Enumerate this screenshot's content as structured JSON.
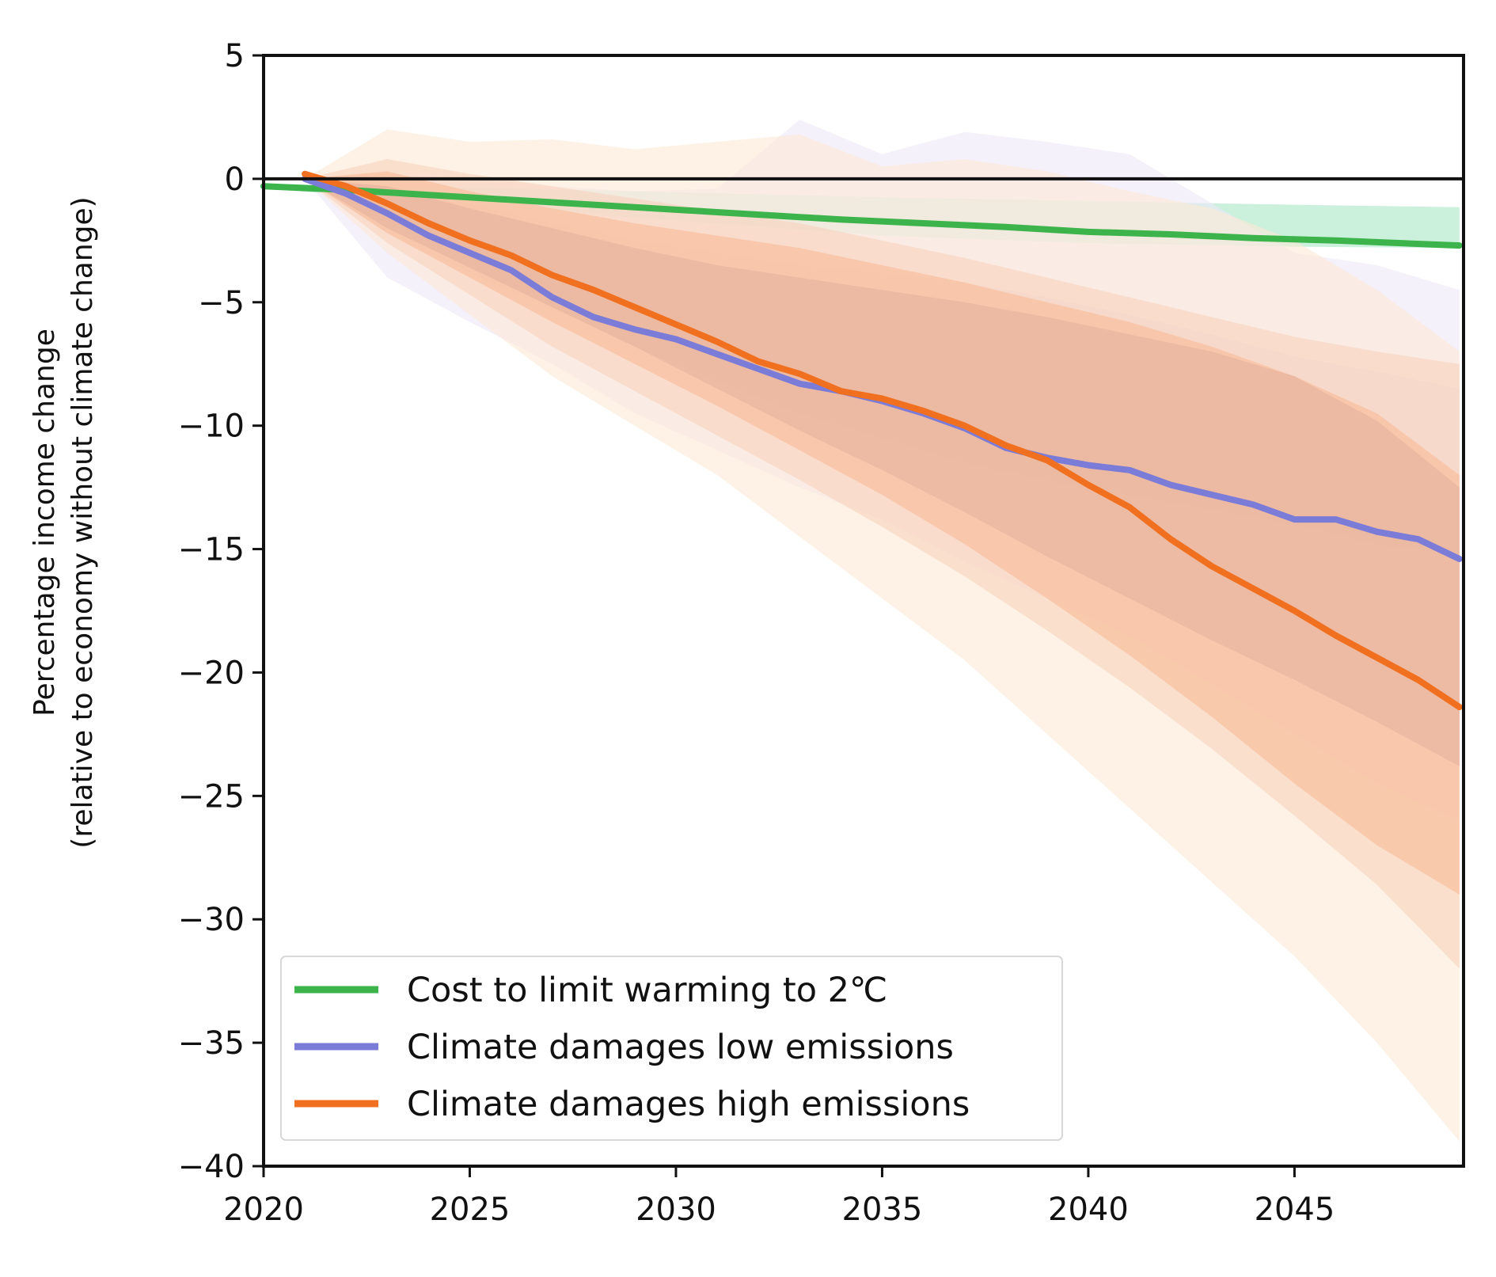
{
  "chart_data": {
    "type": "line",
    "title": "",
    "xlabel": "",
    "ylabel": [
      "Percentage income change",
      "(relative to economy without climate change)"
    ],
    "xlim": [
      2020,
      2049
    ],
    "ylim": [
      -40,
      5
    ],
    "xticks": [
      2020,
      2025,
      2030,
      2035,
      2040,
      2045
    ],
    "yticks": [
      5,
      0,
      -5,
      -10,
      -15,
      -20,
      -25,
      -30,
      -35,
      -40
    ],
    "grid": false,
    "reference_line": 0,
    "legend_position": "bottom-left",
    "series": [
      {
        "name": "Cost to limit warming to 2℃",
        "color": "#3cb44b",
        "band_colors": [
          "#a8e6c4"
        ],
        "x": [
          2020,
          2022,
          2024,
          2026,
          2028,
          2030,
          2032,
          2034,
          2036,
          2038,
          2040,
          2042,
          2044,
          2046,
          2049
        ],
        "y": [
          -0.3,
          -0.45,
          -0.65,
          -0.85,
          -1.05,
          -1.25,
          -1.45,
          -1.65,
          -1.8,
          -1.95,
          -2.15,
          -2.25,
          -2.4,
          -2.5,
          -2.7
        ],
        "bands": [
          {
            "x": [
              2020,
              2025,
              2030,
              2035,
              2040,
              2045,
              2049
            ],
            "upper": [
              -0.2,
              -0.35,
              -0.55,
              -0.75,
              -0.9,
              -1.05,
              -1.15
            ],
            "lower": [
              -0.4,
              -1.0,
              -1.7,
              -2.3,
              -2.6,
              -2.75,
              -2.8
            ]
          }
        ]
      },
      {
        "name": "Climate damages low emissions",
        "color": "#7b7bd8",
        "band_colors": [
          "#ece8f6",
          "#ddd0ec"
        ],
        "x": [
          2021,
          2022,
          2023,
          2024,
          2025,
          2026,
          2027,
          2028,
          2029,
          2030,
          2031,
          2032,
          2033,
          2034,
          2035,
          2036,
          2037,
          2038,
          2039,
          2040,
          2041,
          2042,
          2043,
          2044,
          2045,
          2046,
          2047,
          2048,
          2049
        ],
        "y": [
          0.0,
          -0.6,
          -1.4,
          -2.3,
          -3.0,
          -3.7,
          -4.8,
          -5.6,
          -6.1,
          -6.5,
          -7.1,
          -7.7,
          -8.3,
          -8.6,
          -9.0,
          -9.5,
          -10.1,
          -10.9,
          -11.3,
          -11.6,
          -11.8,
          -12.4,
          -12.8,
          -13.2,
          -13.8,
          -13.8,
          -14.3,
          -14.6,
          -15.4
        ],
        "bands": [
          {
            "x": [
              2021,
              2023,
              2025,
              2027,
              2029,
              2031,
              2033,
              2035,
              2037,
              2039,
              2041,
              2043,
              2045,
              2047,
              2049
            ],
            "upper": [
              0.0,
              0.2,
              0.0,
              -0.3,
              -0.5,
              -0.4,
              2.4,
              1.0,
              1.9,
              1.5,
              1.0,
              -1.0,
              -3.0,
              -3.5,
              -4.5
            ],
            "lower": [
              0.0,
              -4.0,
              -5.8,
              -7.5,
              -9.5,
              -11.0,
              -12.5,
              -13.8,
              -15.5,
              -17.0,
              -18.5,
              -20.5,
              -22.5,
              -24.5,
              -26.0
            ]
          },
          {
            "x": [
              2021,
              2023,
              2025,
              2027,
              2029,
              2031,
              2033,
              2035,
              2037,
              2039,
              2041,
              2043,
              2045,
              2047,
              2049
            ],
            "upper": [
              0.0,
              -0.3,
              -1.0,
              -1.8,
              -2.5,
              -3.0,
              -3.5,
              -3.8,
              -4.2,
              -4.8,
              -5.5,
              -6.3,
              -7.2,
              -7.8,
              -8.5
            ],
            "lower": [
              0.0,
              -2.2,
              -3.8,
              -5.3,
              -6.8,
              -8.2,
              -9.5,
              -10.5,
              -11.5,
              -12.2,
              -12.8,
              -13.4,
              -14.0,
              -14.8,
              -15.2
            ]
          }
        ]
      },
      {
        "name": "Climate damages high emissions",
        "color": "#f07020",
        "band_colors": [
          "#fde9d6",
          "#f9d2bc",
          "#f8bb96",
          "#e5b09c"
        ],
        "x": [
          2021,
          2022,
          2023,
          2024,
          2025,
          2026,
          2027,
          2028,
          2029,
          2030,
          2031,
          2032,
          2033,
          2034,
          2035,
          2036,
          2037,
          2038,
          2039,
          2040,
          2041,
          2042,
          2043,
          2044,
          2045,
          2046,
          2047,
          2048,
          2049
        ],
        "y": [
          0.2,
          -0.3,
          -1.0,
          -1.8,
          -2.5,
          -3.1,
          -3.9,
          -4.5,
          -5.2,
          -5.9,
          -6.6,
          -7.4,
          -7.9,
          -8.6,
          -8.9,
          -9.4,
          -10.0,
          -10.8,
          -11.4,
          -12.4,
          -13.3,
          -14.6,
          -15.7,
          -16.6,
          -17.5,
          -18.5,
          -19.4,
          -20.3,
          -21.4
        ],
        "bands": [
          {
            "x": [
              2021,
              2023,
              2025,
              2027,
              2029,
              2031,
              2033,
              2035,
              2037,
              2039,
              2041,
              2043,
              2045,
              2047,
              2049
            ],
            "upper": [
              0.0,
              2.0,
              1.5,
              1.6,
              1.2,
              1.5,
              1.8,
              0.5,
              0.8,
              0.3,
              -0.5,
              -1.2,
              -2.5,
              -4.5,
              -7.0
            ],
            "lower": [
              0.0,
              -3.0,
              -5.5,
              -8.0,
              -10.0,
              -12.0,
              -14.5,
              -17.0,
              -19.5,
              -22.5,
              -25.5,
              -28.5,
              -31.5,
              -35.0,
              -39.0
            ]
          },
          {
            "x": [
              2021,
              2023,
              2025,
              2027,
              2029,
              2031,
              2033,
              2035,
              2037,
              2039,
              2041,
              2043,
              2045,
              2047,
              2049
            ],
            "upper": [
              0.0,
              0.8,
              0.2,
              -0.3,
              -0.8,
              -1.3,
              -1.8,
              -2.5,
              -3.2,
              -4.0,
              -4.8,
              -5.6,
              -6.4,
              -7.0,
              -7.5
            ],
            "lower": [
              0.0,
              -2.6,
              -4.7,
              -6.8,
              -8.6,
              -10.4,
              -12.2,
              -14.1,
              -16.1,
              -18.3,
              -20.6,
              -23.1,
              -25.8,
              -28.6,
              -32.0
            ]
          },
          {
            "x": [
              2021,
              2023,
              2025,
              2027,
              2029,
              2031,
              2033,
              2035,
              2037,
              2039,
              2041,
              2043,
              2045,
              2047,
              2049
            ],
            "upper": [
              0.0,
              0.3,
              -0.5,
              -1.2,
              -1.8,
              -2.3,
              -2.8,
              -3.5,
              -4.2,
              -5.0,
              -5.8,
              -6.8,
              -8.0,
              -9.5,
              -12.0
            ],
            "lower": [
              0.0,
              -2.2,
              -4.0,
              -5.8,
              -7.5,
              -9.2,
              -11.0,
              -12.8,
              -14.8,
              -17.0,
              -19.3,
              -21.8,
              -24.5,
              -27.0,
              -29.0
            ]
          },
          {
            "x": [
              2021,
              2023,
              2025,
              2027,
              2029,
              2031,
              2033,
              2035,
              2037,
              2039,
              2041,
              2043,
              2045,
              2047,
              2049
            ],
            "upper": [
              0.0,
              -0.3,
              -1.2,
              -2.0,
              -2.8,
              -3.5,
              -4.0,
              -4.5,
              -5.0,
              -5.6,
              -6.3,
              -7.0,
              -8.0,
              -9.8,
              -12.5
            ],
            "lower": [
              0.0,
              -2.0,
              -3.6,
              -5.2,
              -6.8,
              -8.5,
              -10.2,
              -11.8,
              -13.5,
              -15.3,
              -17.0,
              -18.7,
              -20.3,
              -22.0,
              -23.8
            ]
          }
        ]
      }
    ]
  }
}
